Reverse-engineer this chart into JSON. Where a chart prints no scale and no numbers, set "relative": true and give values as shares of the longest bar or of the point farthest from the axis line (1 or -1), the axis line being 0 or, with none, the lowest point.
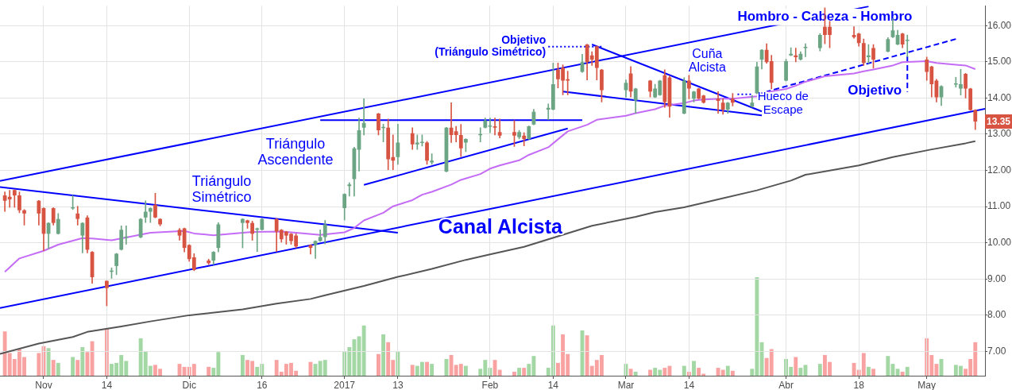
{
  "chart_data": [
    {
      "type": "candlestick",
      "x": [
        "2016-10-24",
        "2016-10-25",
        "2016-10-26",
        "2016-10-27",
        "2016-10-28",
        "2016-10-31",
        "2016-11-01",
        "2016-11-02",
        "2016-11-03",
        "2016-11-04",
        "2016-11-07",
        "2016-11-08",
        "2016-11-09",
        "2016-11-10",
        "2016-11-11",
        "2016-11-14",
        "2016-11-15",
        "2016-11-16",
        "2016-11-17",
        "2016-11-18",
        "2016-11-21",
        "2016-11-22",
        "2016-11-23",
        "2016-11-24",
        "2016-11-25",
        "2016-11-29",
        "2016-11-30",
        "2016-12-01",
        "2016-12-02",
        "2016-12-05",
        "2016-12-06",
        "2016-12-07",
        "2016-12-12",
        "2016-12-13",
        "2016-12-14",
        "2016-12-15",
        "2016-12-16",
        "2016-12-19",
        "2016-12-20",
        "2016-12-21",
        "2016-12-22",
        "2016-12-23",
        "2016-12-26",
        "2016-12-27",
        "2016-12-28",
        "2016-12-29",
        "2017-01-02",
        "2017-01-03",
        "2017-01-04",
        "2017-01-05",
        "2017-01-06",
        "2017-01-09",
        "2017-01-10",
        "2017-01-11",
        "2017-01-12",
        "2017-01-13",
        "2017-01-16",
        "2017-01-17",
        "2017-01-18",
        "2017-01-19",
        "2017-01-20",
        "2017-01-23",
        "2017-01-24",
        "2017-01-25",
        "2017-01-26",
        "2017-01-27",
        "2017-01-30",
        "2017-01-31",
        "2017-02-01",
        "2017-02-02",
        "2017-02-03",
        "2017-02-06",
        "2017-02-07",
        "2017-02-08",
        "2017-02-09",
        "2017-02-10",
        "2017-02-13",
        "2017-02-14",
        "2017-02-15",
        "2017-02-16",
        "2017-02-17",
        "2017-02-20",
        "2017-02-21",
        "2017-02-22",
        "2017-02-23",
        "2017-02-24",
        "2017-03-01",
        "2017-03-02",
        "2017-03-03",
        "2017-03-06",
        "2017-03-07",
        "2017-03-08",
        "2017-03-09",
        "2017-03-10",
        "2017-03-13",
        "2017-03-14",
        "2017-03-15",
        "2017-03-16",
        "2017-03-17",
        "2017-03-20",
        "2017-03-21",
        "2017-03-22",
        "2017-03-23",
        "2017-03-27",
        "2017-03-28",
        "2017-03-29",
        "2017-03-30",
        "2017-03-31",
        "2017-04-03",
        "2017-04-04",
        "2017-04-05",
        "2017-04-06",
        "2017-04-07",
        "2017-04-10",
        "2017-04-11",
        "2017-04-12",
        "2017-04-17",
        "2017-04-18",
        "2017-04-19",
        "2017-04-20",
        "2017-04-21",
        "2017-04-24",
        "2017-04-25",
        "2017-04-26",
        "2017-04-27",
        "2017-04-28",
        "2017-05-02",
        "2017-05-03",
        "2017-05-04",
        "2017-05-05",
        "2017-05-08",
        "2017-05-09",
        "2017-05-10",
        "2017-05-11",
        "2017-05-12"
      ],
      "ohlc": [
        [
          11.31,
          11.41,
          10.87,
          11.16
        ],
        [
          11.27,
          11.45,
          10.98,
          11.2
        ],
        [
          11.46,
          11.47,
          10.98,
          11.31
        ],
        [
          11.31,
          11.41,
          10.83,
          10.9
        ],
        [
          10.9,
          10.92,
          10.49,
          10.81
        ],
        [
          11.16,
          11.17,
          10.49,
          10.81
        ],
        [
          10.96,
          10.97,
          9.78,
          10.25
        ],
        [
          10.25,
          10.56,
          9.84,
          10.55
        ],
        [
          10.96,
          10.97,
          10.49,
          10.55
        ],
        [
          10.25,
          10.81,
          10.24,
          10.66
        ],
        [
          10.95,
          11.31,
          10.92,
          10.96
        ],
        [
          10.81,
          11.01,
          10.49,
          10.66
        ],
        [
          10.2,
          10.56,
          9.72,
          10.55
        ],
        [
          10.7,
          10.75,
          9.72,
          9.81
        ],
        [
          9.75,
          9.76,
          8.88,
          9.05
        ],
        [
          8.95,
          8.95,
          8.26,
          8.75
        ],
        [
          9.2,
          9.31,
          9.02,
          9.21
        ],
        [
          9.36,
          9.71,
          9.12,
          9.7
        ],
        [
          9.81,
          10.47,
          9.8,
          10.36
        ],
        [
          10.14,
          10.47,
          9.96,
          10.15
        ],
        [
          10.15,
          10.67,
          10.14,
          10.66
        ],
        [
          10.7,
          11.16,
          10.56,
          10.86
        ],
        [
          10.86,
          10.97,
          10.56,
          10.96
        ],
        [
          11.05,
          11.37,
          10.69,
          10.7
        ],
        [
          10.66,
          10.67,
          10.47,
          10.51
        ],
        [
          10.36,
          10.4,
          10.07,
          10.2
        ],
        [
          10.4,
          10.41,
          9.75,
          9.86
        ],
        [
          9.94,
          9.95,
          9.49,
          9.55
        ],
        [
          9.6,
          9.7,
          9.23,
          9.25
        ],
        [
          9.51,
          9.55,
          9.4,
          9.44
        ],
        [
          9.51,
          9.76,
          9.4,
          9.75
        ],
        [
          9.86,
          10.56,
          9.75,
          10.51
        ],
        [
          10.55,
          10.67,
          9.86,
          10.66
        ],
        [
          10.62,
          10.63,
          10.4,
          10.55
        ],
        [
          10.55,
          10.6,
          10.07,
          10.25
        ],
        [
          10.36,
          10.41,
          9.76,
          10.4
        ],
        [
          10.36,
          10.67,
          10.35,
          10.66
        ],
        [
          10.66,
          10.67,
          9.76,
          10.31
        ],
        [
          10.36,
          10.37,
          10.02,
          10.1
        ],
        [
          10.31,
          10.32,
          9.96,
          10.2
        ],
        [
          10.25,
          10.26,
          9.96,
          10.05
        ],
        [
          10.2,
          10.25,
          9.86,
          9.9
        ],
        [
          9.94,
          9.95,
          9.69,
          9.86
        ],
        [
          9.94,
          10.06,
          9.57,
          10.05
        ],
        [
          10.05,
          10.36,
          10.04,
          10.16
        ],
        [
          10.16,
          10.62,
          9.97,
          10.51
        ],
        [
          10.96,
          11.36,
          10.63,
          11.35
        ],
        [
          11.57,
          11.66,
          11.29,
          11.61
        ],
        [
          11.76,
          12.64,
          11.29,
          12.61
        ],
        [
          12.57,
          13.45,
          11.98,
          13.11
        ],
        [
          13.18,
          13.98,
          12.98,
          13.31
        ],
        [
          13.57,
          13.58,
          12.98,
          13.11
        ],
        [
          13.17,
          13.28,
          12.79,
          13.18
        ],
        [
          13.18,
          13.42,
          12.02,
          12.31
        ],
        [
          12.37,
          12.98,
          12.02,
          12.27
        ],
        [
          12.37,
          13.28,
          12.17,
          12.77
        ],
        [
          13.03,
          13.18,
          12.58,
          12.72
        ],
        [
          12.72,
          12.98,
          12.58,
          12.77
        ],
        [
          12.76,
          12.98,
          12.67,
          12.77
        ],
        [
          12.77,
          12.8,
          12.17,
          12.27
        ],
        [
          12.22,
          12.46,
          12.17,
          12.27
        ],
        [
          11.97,
          13.19,
          11.96,
          13.18
        ],
        [
          13.18,
          13.87,
          12.77,
          12.98
        ],
        [
          13.08,
          13.22,
          12.79,
          12.98
        ],
        [
          12.98,
          13.27,
          12.38,
          12.61
        ],
        [
          12.77,
          12.88,
          12.52,
          12.87
        ],
        [
          12.97,
          13.18,
          12.79,
          12.98
        ],
        [
          13.18,
          13.45,
          13.17,
          13.38
        ],
        [
          13.21,
          13.45,
          13.04,
          13.22
        ],
        [
          13.22,
          13.45,
          12.98,
          13.18
        ],
        [
          13.06,
          13.42,
          12.9,
          12.96
        ],
        [
          13.06,
          13.38,
          12.66,
          12.96
        ],
        [
          12.92,
          13.11,
          12.87,
          13.06
        ],
        [
          12.96,
          13.04,
          12.68,
          12.87
        ],
        [
          12.87,
          13.23,
          12.86,
          13.22
        ],
        [
          13.27,
          13.69,
          13.26,
          13.62
        ],
        [
          13.68,
          13.84,
          13.4,
          13.73
        ],
        [
          13.68,
          14.97,
          13.67,
          14.38
        ],
        [
          14.78,
          14.97,
          14.28,
          14.52
        ],
        [
          14.84,
          14.92,
          14.09,
          14.48
        ],
        [
          14.52,
          14.74,
          14.09,
          14.48
        ],
        [
          14.72,
          15.21,
          14.71,
          14.99
        ],
        [
          15.48,
          15.49,
          14.5,
          14.99
        ],
        [
          15.18,
          15.28,
          14.9,
          15.06
        ],
        [
          15.43,
          15.44,
          14.5,
          14.83
        ],
        [
          14.78,
          14.79,
          13.89,
          14.22
        ],
        [
          14.22,
          14.5,
          14.02,
          14.42
        ],
        [
          14.68,
          14.87,
          14.03,
          14.18
        ],
        [
          13.93,
          14.27,
          13.58,
          14.26
        ],
        [
          14.48,
          14.49,
          14.03,
          14.18
        ],
        [
          14.02,
          14.38,
          14.01,
          14.26
        ],
        [
          14.08,
          14.49,
          14.07,
          14.48
        ],
        [
          14.63,
          14.78,
          13.74,
          13.89
        ],
        [
          14.57,
          14.61,
          13.47,
          13.76
        ],
        [
          13.57,
          14.56,
          13.56,
          14.48
        ],
        [
          14.48,
          14.63,
          13.98,
          14.26
        ],
        [
          13.98,
          14.19,
          13.89,
          14.18
        ],
        [
          14.26,
          14.27,
          13.97,
          13.98
        ],
        [
          14.07,
          14.08,
          13.86,
          13.87
        ],
        [
          13.98,
          14.18,
          13.58,
          13.92
        ],
        [
          13.87,
          13.98,
          13.55,
          13.68
        ],
        [
          13.68,
          13.88,
          13.58,
          13.87
        ],
        [
          13.98,
          14.13,
          13.78,
          13.87
        ],
        [
          13.76,
          14.07,
          13.75,
          13.87
        ],
        [
          14.13,
          14.99,
          14.12,
          14.87
        ],
        [
          15.06,
          15.34,
          14.8,
          15.33
        ],
        [
          15.33,
          15.5,
          14.96,
          14.99
        ],
        [
          15.02,
          15.18,
          14.25,
          14.42
        ],
        [
          14.48,
          15.07,
          14.47,
          15.02
        ],
        [
          15.18,
          15.39,
          15.17,
          15.22
        ],
        [
          15.18,
          15.38,
          15,
          15.13
        ],
        [
          15.06,
          15.28,
          15.05,
          15.22
        ],
        [
          15.38,
          15.5,
          15.14,
          15.39
        ],
        [
          15.38,
          15.78,
          15.3,
          15.74
        ],
        [
          15.97,
          16.49,
          15.5,
          15.74
        ],
        [
          15.97,
          16.12,
          15.39,
          15.74
        ],
        [
          15.74,
          15.97,
          15.65,
          15.68
        ],
        [
          15.78,
          15.79,
          15.43,
          15.52
        ],
        [
          15.52,
          15.63,
          14.9,
          14.97
        ],
        [
          15.13,
          15.48,
          14.96,
          15.18
        ],
        [
          15.38,
          15.48,
          14.83,
          15.06
        ],
        [
          15.28,
          15.67,
          15.27,
          15.63
        ],
        [
          15.68,
          16.19,
          15.67,
          15.87
        ],
        [
          15.48,
          15.87,
          15.47,
          15.74
        ],
        [
          15.78,
          15.79,
          15.39,
          15.48
        ],
        [
          15.58,
          15.74,
          15.14,
          15.59
        ],
        [
          15.06,
          15.13,
          14.49,
          14.72
        ],
        [
          14.87,
          14.88,
          14.03,
          14.38
        ],
        [
          14.48,
          14.52,
          13.89,
          14.02
        ],
        [
          14.02,
          14.34,
          13.79,
          14.33
        ],
        [
          14.37,
          14.57,
          14.3,
          14.38
        ],
        [
          14.26,
          14.79,
          14.08,
          14.38
        ],
        [
          14.67,
          14.68,
          14,
          14.26
        ],
        [
          14.26,
          14.27,
          13.66,
          13.67
        ],
        [
          13.67,
          13.68,
          13.13,
          13.35
        ]
      ],
      "colors": [
        "#d75442",
        "#d75442",
        "#d75442",
        "#d75442",
        "#d75442",
        "#d75442",
        "#d75442",
        "#6ba583",
        "#d75442",
        "#6ba583",
        "#6ba583",
        "#d75442",
        "#6ba583",
        "#d75442",
        "#d75442",
        "#d75442",
        "#6ba583",
        "#6ba583",
        "#6ba583",
        "#6ba583",
        "#6ba583",
        "#6ba583",
        "#6ba583",
        "#d75442",
        "#d75442",
        "#d75442",
        "#d75442",
        "#d75442",
        "#d75442",
        "#d75442",
        "#6ba583",
        "#6ba583",
        "#6ba583",
        "#d75442",
        "#d75442",
        "#6ba583",
        "#6ba583",
        "#d75442",
        "#d75442",
        "#d75442",
        "#d75442",
        "#d75442",
        "#d75442",
        "#6ba583",
        "#6ba583",
        "#6ba583",
        "#6ba583",
        "#6ba583",
        "#6ba583",
        "#6ba583",
        "#6ba583",
        "#d75442",
        "#6ba583",
        "#d75442",
        "#d75442",
        "#6ba583",
        "#d75442",
        "#6ba583",
        "#6ba583",
        "#d75442",
        "#6ba583",
        "#6ba583",
        "#d75442",
        "#d75442",
        "#d75442",
        "#6ba583",
        "#6ba583",
        "#6ba583",
        "#6ba583",
        "#d75442",
        "#d75442",
        "#d75442",
        "#6ba583",
        "#d75442",
        "#6ba583",
        "#6ba583",
        "#6ba583",
        "#6ba583",
        "#d75442",
        "#d75442",
        "#d75442",
        "#6ba583",
        "#d75442",
        "#d75442",
        "#d75442",
        "#d75442",
        "#6ba583",
        "#d75442",
        "#6ba583",
        "#d75442",
        "#6ba583",
        "#6ba583",
        "#d75442",
        "#d75442",
        "#6ba583",
        "#d75442",
        "#6ba583",
        "#d75442",
        "#d75442",
        "#d75442",
        "#d75442",
        "#6ba583",
        "#d75442",
        "#6ba583",
        "#6ba583",
        "#6ba583",
        "#d75442",
        "#d75442",
        "#6ba583",
        "#6ba583",
        "#d75442",
        "#6ba583",
        "#6ba583",
        "#6ba583",
        "#d75442",
        "#d75442",
        "#d75442",
        "#d75442",
        "#d75442",
        "#6ba583",
        "#d75442",
        "#6ba583",
        "#6ba583",
        "#6ba583",
        "#d75442",
        "#6ba583",
        "#d75442",
        "#d75442",
        "#d75442",
        "#6ba583",
        "#6ba583",
        "#6ba583",
        "#d75442",
        "#d75442",
        "#d75442"
      ],
      "xlim": [
        "2016-10-23",
        "2017-05-14"
      ],
      "xticks": [
        {
          "value": "2016-11-01",
          "label": "Nov"
        },
        {
          "value": "2016-11-14",
          "label": "14"
        },
        {
          "value": "2016-12-01",
          "label": "Dic"
        },
        {
          "value": "2016-12-16",
          "label": "16"
        },
        {
          "value": "2017-01-02",
          "label": "2017"
        },
        {
          "value": "2017-01-13",
          "label": "13"
        },
        {
          "value": "2017-02-01",
          "label": "Feb"
        },
        {
          "value": "2017-02-14",
          "label": "14"
        },
        {
          "value": "2017-03-01",
          "label": "Mar"
        },
        {
          "value": "2017-03-14",
          "label": "14"
        },
        {
          "value": "2017-04-03",
          "label": "Abr"
        },
        {
          "value": "2017-04-18",
          "label": "18"
        },
        {
          "value": "2017-05-02",
          "label": "May"
        }
      ],
      "ylim": [
        6.33,
        16.55
      ],
      "yticks": [
        {
          "value": 7,
          "label": "7.00"
        },
        {
          "value": 8,
          "label": "8.00"
        },
        {
          "value": 9,
          "label": "9.00"
        },
        {
          "value": 10,
          "label": "10.00"
        },
        {
          "value": 11,
          "label": "11.00"
        },
        {
          "value": 12,
          "label": "12.00"
        },
        {
          "value": 13,
          "label": "13.00"
        },
        {
          "value": 14,
          "label": "14.00"
        },
        {
          "value": 15,
          "label": "15.00"
        },
        {
          "value": 16,
          "label": "16.00"
        }
      ],
      "grid": true,
      "marker": "none",
      "series": [
        {
          "type": "line",
          "color": "#c46cf5",
          "x": [
            "2016-10-24",
            "2016-10-27",
            "2016-11-01",
            "2016-11-04",
            "2016-11-09",
            "2016-11-11",
            "2016-11-15",
            "2016-11-18",
            "2016-11-23",
            "2016-11-30",
            "2016-12-02",
            "2016-12-06",
            "2016-12-14",
            "2016-12-20",
            "2016-12-23",
            "2016-12-28",
            "2017-01-02",
            "2017-01-04",
            "2017-01-06",
            "2017-01-10",
            "2017-01-12",
            "2017-01-16",
            "2017-01-18",
            "2017-01-20",
            "2017-01-24",
            "2017-01-26",
            "2017-01-30",
            "2017-02-01",
            "2017-02-03",
            "2017-02-07",
            "2017-02-09",
            "2017-02-13",
            "2017-02-15",
            "2017-02-17",
            "2017-02-21",
            "2017-02-23",
            "2017-03-01",
            "2017-03-03",
            "2017-03-07",
            "2017-03-09",
            "2017-03-13",
            "2017-03-15",
            "2017-03-17",
            "2017-03-21",
            "2017-03-23",
            "2017-03-28",
            "2017-03-30",
            "2017-04-03",
            "2017-04-05",
            "2017-04-07",
            "2017-04-11",
            "2017-04-17",
            "2017-04-19",
            "2017-04-21",
            "2017-04-25",
            "2017-04-27",
            "2017-05-02",
            "2017-05-04",
            "2017-05-08",
            "2017-05-10",
            "2017-05-12"
          ],
          "values": [
            9.2,
            9.57,
            9.78,
            9.95,
            10.13,
            10.12,
            10.07,
            10.15,
            10.28,
            10.33,
            10.26,
            10.21,
            10.3,
            10.31,
            10.28,
            10.22,
            10.29,
            10.41,
            10.62,
            10.83,
            11.01,
            11.18,
            11.33,
            11.41,
            11.61,
            11.74,
            11.9,
            12.05,
            12.14,
            12.28,
            12.43,
            12.64,
            12.86,
            13.08,
            13.26,
            13.4,
            13.51,
            13.58,
            13.69,
            13.79,
            13.86,
            13.93,
            13.96,
            13.98,
            13.98,
            14.05,
            14.16,
            14.25,
            14.34,
            14.45,
            14.6,
            14.68,
            14.74,
            14.79,
            14.9,
            14.99,
            15.02,
            14.97,
            14.92,
            14.9,
            14.8
          ]
        },
        {
          "type": "line",
          "color": "#555555",
          "x": [
            "2016-10-23",
            "2016-10-31",
            "2016-11-07",
            "2016-11-10",
            "2016-11-17",
            "2016-11-23",
            "2016-12-01",
            "2016-12-12",
            "2016-12-19",
            "2016-12-26",
            "2016-12-29",
            "2017-01-06",
            "2017-01-13",
            "2017-01-20",
            "2017-01-27",
            "2017-02-01",
            "2017-02-08",
            "2017-02-15",
            "2017-02-22",
            "2017-03-03",
            "2017-03-07",
            "2017-03-13",
            "2017-03-20",
            "2017-03-28",
            "2017-04-04",
            "2017-04-07",
            "2017-04-18",
            "2017-04-25",
            "2017-05-03",
            "2017-05-10",
            "2017-05-12"
          ],
          "values": [
            6.93,
            7.22,
            7.4,
            7.54,
            7.69,
            7.83,
            8,
            8.16,
            8.32,
            8.45,
            8.55,
            8.81,
            9.06,
            9.28,
            9.53,
            9.68,
            9.89,
            10.18,
            10.47,
            10.72,
            10.85,
            10.98,
            11.2,
            11.45,
            11.72,
            11.88,
            12.14,
            12.37,
            12.58,
            12.75,
            12.81
          ]
        },
        {
          "type": "line",
          "color": "#0000ff",
          "x": [
            "2016-10-23",
            "2017-04-20"
          ],
          "values": [
            11.71,
            16.53
          ]
        },
        {
          "type": "line",
          "color": "#0000ff",
          "x": [
            "2016-10-23",
            "2017-05-14"
          ],
          "values": [
            8.2,
            13.7
          ]
        },
        {
          "type": "line",
          "color": "#0000ff",
          "x": [
            "2016-10-23",
            "2017-01-13"
          ],
          "values": [
            11.54,
            10.28
          ]
        },
        {
          "type": "line",
          "color": "#0000ff",
          "x": [
            "2016-12-28",
            "2017-02-20"
          ],
          "values": [
            13.39,
            13.39
          ]
        },
        {
          "type": "line",
          "color": "#0000ff",
          "x": [
            "2017-01-06",
            "2017-02-17"
          ],
          "values": [
            11.6,
            13.16
          ]
        },
        {
          "type": "line",
          "color": "#0000ff",
          "line_style": "dotted",
          "x": [
            "2017-02-13",
            "2017-02-24"
          ],
          "values": [
            15.42,
            15.42
          ]
        },
        {
          "type": "line",
          "color": "#0000ff",
          "x": [
            "2017-02-22",
            "2017-03-29"
          ],
          "values": [
            15.48,
            13.63
          ]
        },
        {
          "type": "line",
          "color": "#0000ff",
          "x": [
            "2017-02-16",
            "2017-03-29"
          ],
          "values": [
            14.18,
            13.52
          ]
        },
        {
          "type": "line",
          "color": "#0000ff",
          "line_style": "dashed",
          "x": [
            "2017-03-28",
            "2017-05-08"
          ],
          "values": [
            14.1,
            15.63
          ]
        },
        {
          "type": "line",
          "color": "#0000ff",
          "line_style": "dashed",
          "x": [
            "2017-04-28",
            "2017-04-28"
          ],
          "values": [
            15.15,
            14.17
          ]
        },
        {
          "type": "line",
          "color": "#0000ff",
          "line_style": "dotted",
          "x": [
            "2017-03-24",
            "2017-03-27"
          ],
          "values": [
            14.1,
            14.1
          ]
        }
      ],
      "annotations": [
        "Triángulo\nSimétrico",
        "Triángulo\nAscendente",
        "Canal Alcista",
        {
          "text": "Objetivo\n(Triángulo Simétrico)",
          "x": "2017-02-13",
          "y": 15.42
        },
        "Cuña\nAlcista",
        "Hueco de\nEscape",
        {
          "text": "Hombro - Cabeza - Hombro",
          "x": "2017-04-11",
          "y": 16.24
        },
        {
          "text": "Objetivo",
          "x": "2017-04-28",
          "y": 14.2
        },
        {
          "text": "13.35",
          "y": 13.35
        }
      ]
    },
    {
      "type": "bar",
      "relative": true,
      "tick_labels": false,
      "xlim": [
        "2016-10-23",
        "2017-05-14"
      ],
      "x": [
        "2016-10-24",
        "2016-10-25",
        "2016-10-26",
        "2016-10-27",
        "2016-10-28",
        "2016-10-31",
        "2016-11-01",
        "2016-11-02",
        "2016-11-03",
        "2016-11-04",
        "2016-11-07",
        "2016-11-08",
        "2016-11-09",
        "2016-11-10",
        "2016-11-11",
        "2016-11-14",
        "2016-11-15",
        "2016-11-16",
        "2016-11-17",
        "2016-11-18",
        "2016-11-21",
        "2016-11-22",
        "2016-11-23",
        "2016-11-24",
        "2016-11-25",
        "2016-11-29",
        "2016-11-30",
        "2016-12-01",
        "2016-12-02",
        "2016-12-05",
        "2016-12-06",
        "2016-12-07",
        "2016-12-12",
        "2016-12-13",
        "2016-12-14",
        "2016-12-15",
        "2016-12-16",
        "2016-12-19",
        "2016-12-20",
        "2016-12-21",
        "2016-12-22",
        "2016-12-23",
        "2016-12-26",
        "2016-12-27",
        "2016-12-28",
        "2016-12-29",
        "2017-01-02",
        "2017-01-03",
        "2017-01-04",
        "2017-01-05",
        "2017-01-06",
        "2017-01-09",
        "2017-01-10",
        "2017-01-11",
        "2017-01-12",
        "2017-01-13",
        "2017-01-16",
        "2017-01-17",
        "2017-01-18",
        "2017-01-19",
        "2017-01-20",
        "2017-01-23",
        "2017-01-24",
        "2017-01-25",
        "2017-01-26",
        "2017-01-27",
        "2017-01-30",
        "2017-01-31",
        "2017-02-01",
        "2017-02-02",
        "2017-02-03",
        "2017-02-06",
        "2017-02-07",
        "2017-02-08",
        "2017-02-09",
        "2017-02-10",
        "2017-02-13",
        "2017-02-14",
        "2017-02-15",
        "2017-02-16",
        "2017-02-17",
        "2017-02-20",
        "2017-02-21",
        "2017-02-22",
        "2017-02-23",
        "2017-02-24",
        "2017-03-01",
        "2017-03-02",
        "2017-03-03",
        "2017-03-06",
        "2017-03-07",
        "2017-03-08",
        "2017-03-09",
        "2017-03-10",
        "2017-03-13",
        "2017-03-14",
        "2017-03-15",
        "2017-03-16",
        "2017-03-17",
        "2017-03-20",
        "2017-03-21",
        "2017-03-22",
        "2017-03-23",
        "2017-03-27",
        "2017-03-28",
        "2017-03-29",
        "2017-03-30",
        "2017-03-31",
        "2017-04-03",
        "2017-04-04",
        "2017-04-05",
        "2017-04-06",
        "2017-04-07",
        "2017-04-10",
        "2017-04-11",
        "2017-04-12",
        "2017-04-17",
        "2017-04-18",
        "2017-04-19",
        "2017-04-20",
        "2017-04-21",
        "2017-04-24",
        "2017-04-25",
        "2017-04-26",
        "2017-04-27",
        "2017-04-28",
        "2017-05-02",
        "2017-05-03",
        "2017-05-04",
        "2017-05-05",
        "2017-05-08",
        "2017-05-09",
        "2017-05-10",
        "2017-05-11",
        "2017-05-12"
      ],
      "values": [
        0.45,
        0.23,
        0.17,
        0.27,
        0.19,
        0.23,
        0.3,
        0.28,
        0.16,
        0.13,
        0.19,
        0.16,
        0.29,
        0.24,
        0.35,
        0.48,
        0.12,
        0.13,
        0.21,
        0.15,
        0.38,
        0.25,
        0.1,
        0.11,
        0.07,
        0.12,
        0.09,
        0.09,
        0.12,
        0.09,
        0.08,
        0.24,
        0.21,
        0.16,
        0.15,
        0.09,
        0.12,
        0.16,
        0.04,
        0.12,
        0.13,
        0.05,
        0.14,
        0.12,
        0.15,
        0.16,
        0.25,
        0.29,
        0.37,
        0.4,
        0.51,
        0.22,
        0.42,
        0.34,
        0.16,
        0.25,
        0.11,
        0.1,
        0.14,
        0.14,
        0.12,
        0.17,
        0.21,
        0.11,
        0.12,
        0.1,
        0.07,
        0.16,
        0.08,
        0.16,
        0.06,
        0.04,
        0.08,
        0.08,
        0.12,
        0.2,
        0.08,
        0.51,
        0.13,
        0.42,
        0.22,
        0.46,
        0.41,
        0.1,
        0.16,
        0.21,
        0.12,
        0.07,
        0.04,
        0.06,
        0.08,
        0.06,
        0.08,
        0.1,
        0.1,
        0.04,
        0.15,
        0.08,
        0.02,
        0.08,
        0.06,
        0.1,
        0.05,
        0.07,
        1,
        0.34,
        0.18,
        0.27,
        0.17,
        0.09,
        0.19,
        0.08,
        0.11,
        0.12,
        0.21,
        0.14,
        0.13,
        0.06,
        0.23,
        0.09,
        0.07,
        0.2,
        0.12,
        0.07,
        0.04,
        0.09,
        0.38,
        0.21,
        0.12,
        0.17,
        0.11,
        0.1,
        0.07,
        0.17,
        0.34
      ],
      "colors": [
        "#f9a2a2",
        "#f9a2a2",
        "#f9a2a2",
        "#f9a2a2",
        "#f9a2a2",
        "#f9a2a2",
        "#f9a2a2",
        "#a3d7a4",
        "#f9a2a2",
        "#a3d7a4",
        "#a3d7a4",
        "#f9a2a2",
        "#a3d7a4",
        "#f9a2a2",
        "#f9a2a2",
        "#f9a2a2",
        "#a3d7a4",
        "#a3d7a4",
        "#a3d7a4",
        "#a3d7a4",
        "#a3d7a4",
        "#a3d7a4",
        "#a3d7a4",
        "#f9a2a2",
        "#f9a2a2",
        "#f9a2a2",
        "#f9a2a2",
        "#f9a2a2",
        "#f9a2a2",
        "#f9a2a2",
        "#a3d7a4",
        "#a3d7a4",
        "#a3d7a4",
        "#f9a2a2",
        "#f9a2a2",
        "#a3d7a4",
        "#a3d7a4",
        "#f9a2a2",
        "#f9a2a2",
        "#f9a2a2",
        "#f9a2a2",
        "#f9a2a2",
        "#f9a2a2",
        "#a3d7a4",
        "#a3d7a4",
        "#a3d7a4",
        "#a3d7a4",
        "#a3d7a4",
        "#a3d7a4",
        "#a3d7a4",
        "#a3d7a4",
        "#f9a2a2",
        "#a3d7a4",
        "#f9a2a2",
        "#f9a2a2",
        "#a3d7a4",
        "#f9a2a2",
        "#a3d7a4",
        "#a3d7a4",
        "#f9a2a2",
        "#a3d7a4",
        "#a3d7a4",
        "#f9a2a2",
        "#f9a2a2",
        "#f9a2a2",
        "#a3d7a4",
        "#a3d7a4",
        "#a3d7a4",
        "#a3d7a4",
        "#f9a2a2",
        "#f9a2a2",
        "#f9a2a2",
        "#a3d7a4",
        "#f9a2a2",
        "#a3d7a4",
        "#a3d7a4",
        "#a3d7a4",
        "#a3d7a4",
        "#f9a2a2",
        "#f9a2a2",
        "#f9a2a2",
        "#a3d7a4",
        "#f9a2a2",
        "#f9a2a2",
        "#f9a2a2",
        "#f9a2a2",
        "#a3d7a4",
        "#f9a2a2",
        "#a3d7a4",
        "#f9a2a2",
        "#a3d7a4",
        "#a3d7a4",
        "#f9a2a2",
        "#f9a2a2",
        "#a3d7a4",
        "#f9a2a2",
        "#a3d7a4",
        "#f9a2a2",
        "#f9a2a2",
        "#f9a2a2",
        "#f9a2a2",
        "#a3d7a4",
        "#f9a2a2",
        "#a3d7a4",
        "#a3d7a4",
        "#a3d7a4",
        "#f9a2a2",
        "#f9a2a2",
        "#a3d7a4",
        "#a3d7a4",
        "#f9a2a2",
        "#a3d7a4",
        "#a3d7a4",
        "#a3d7a4",
        "#f9a2a2",
        "#f9a2a2",
        "#f9a2a2",
        "#f9a2a2",
        "#f9a2a2",
        "#a3d7a4",
        "#f9a2a2",
        "#a3d7a4",
        "#a3d7a4",
        "#a3d7a4",
        "#f9a2a2",
        "#a3d7a4",
        "#f9a2a2",
        "#f9a2a2",
        "#f9a2a2",
        "#a3d7a4",
        "#a3d7a4",
        "#a3d7a4",
        "#f9a2a2",
        "#f9a2a2",
        "#f9a2a2"
      ]
    }
  ]
}
